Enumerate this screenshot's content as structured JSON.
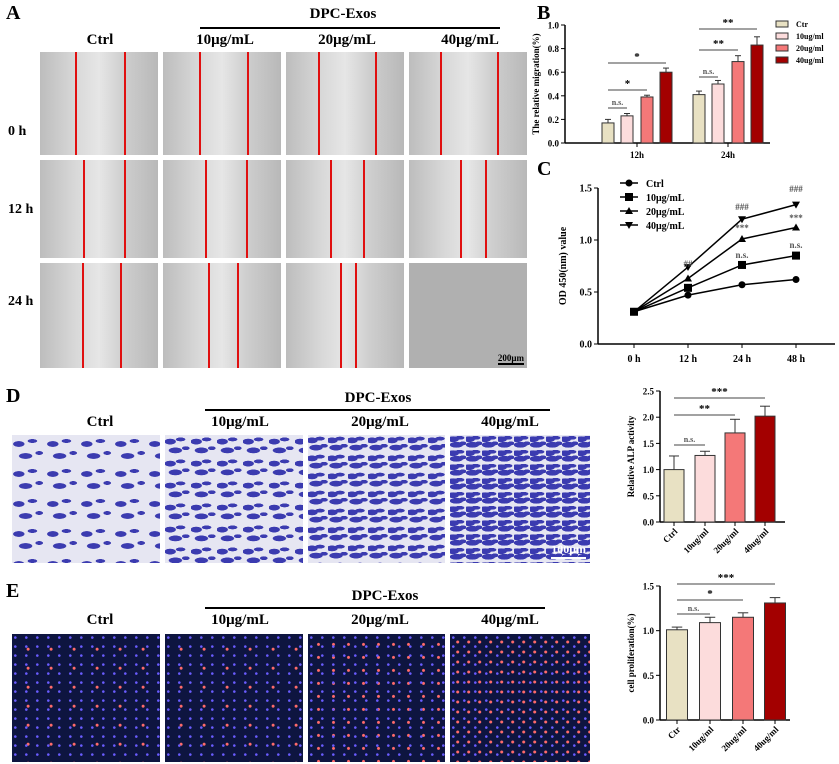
{
  "panels": {
    "A": {
      "label": "A",
      "group": "DPC-Exos",
      "columns": [
        "Ctrl",
        "10μg/mL",
        "20μg/mL",
        "40μg/mL"
      ],
      "rows": [
        "0 h",
        "12 h",
        "24 h"
      ],
      "scale": "200μm"
    },
    "B": {
      "label": "B"
    },
    "C": {
      "label": "C"
    },
    "D": {
      "label": "D",
      "group": "DPC-Exos",
      "columns": [
        "Ctrl",
        "10μg/mL",
        "20μg/mL",
        "40μg/mL"
      ],
      "scale": "100μm"
    },
    "E": {
      "label": "E",
      "group": "DPC-Exos",
      "columns": [
        "Ctrl",
        "10μg/mL",
        "20μg/mL",
        "40μg/mL"
      ]
    }
  },
  "colors": {
    "ctrl": "#e8e1c3",
    "c10": "#fcdcdc",
    "c20": "#f47878",
    "c40": "#a30000"
  },
  "chart_data": [
    {
      "id": "B",
      "type": "bar",
      "ylabel": "The relative migration(%)",
      "ylim": [
        0,
        1.0
      ],
      "yticks": [
        "0.0",
        "0.2",
        "0.4",
        "0.6",
        "0.8",
        "1.0"
      ],
      "categories": [
        "12h",
        "24h"
      ],
      "legend_position": "right",
      "series": [
        {
          "name": "Ctr",
          "values": [
            0.17,
            0.41
          ],
          "errors": [
            0.03,
            0.03
          ]
        },
        {
          "name": "10ug/ml",
          "values": [
            0.23,
            0.5
          ],
          "errors": [
            0.02,
            0.03
          ]
        },
        {
          "name": "20ug/ml",
          "values": [
            0.39,
            0.69
          ],
          "errors": [
            0.015,
            0.05
          ]
        },
        {
          "name": "40ug/ml",
          "values": [
            0.6,
            0.83
          ],
          "errors": [
            0.035,
            0.07
          ]
        }
      ],
      "annotations": [
        {
          "text": "n.s.",
          "group": "12h"
        },
        {
          "text": "*",
          "group": "12h"
        },
        {
          "text": "*",
          "group": "12h"
        },
        {
          "text": "n.s.",
          "group": "24h"
        },
        {
          "text": "**",
          "group": "24h"
        },
        {
          "text": "**",
          "group": "24h"
        }
      ]
    },
    {
      "id": "C",
      "type": "line",
      "ylabel": "OD 450(nm) value",
      "ylim": [
        0,
        1.5
      ],
      "yticks": [
        "0.0",
        "0.5",
        "1.0",
        "1.5"
      ],
      "x": [
        "0 h",
        "12 h",
        "24 h",
        "48 h"
      ],
      "legend_position": "top-left",
      "series": [
        {
          "name": "Ctrl",
          "marker": "circle",
          "values": [
            0.31,
            0.47,
            0.57,
            0.62
          ]
        },
        {
          "name": "10μg/mL",
          "marker": "square",
          "values": [
            0.31,
            0.54,
            0.76,
            0.85
          ]
        },
        {
          "name": "20μg/mL",
          "marker": "triangle",
          "values": [
            0.31,
            0.63,
            1.01,
            1.12
          ]
        },
        {
          "name": "40μg/mL",
          "marker": "triangle-down",
          "values": [
            0.31,
            0.74,
            1.2,
            1.34
          ]
        }
      ],
      "annotations": [
        {
          "x": "12 h",
          "text": "##"
        },
        {
          "x": "24 h",
          "text": "n.s."
        },
        {
          "x": "24 h",
          "text": "***"
        },
        {
          "x": "24 h",
          "text": "###"
        },
        {
          "x": "48 h",
          "text": "n.s."
        },
        {
          "x": "48 h",
          "text": "***"
        },
        {
          "x": "48 h",
          "text": "###"
        }
      ]
    },
    {
      "id": "D",
      "type": "bar",
      "ylabel": "Relative ALP activity",
      "ylim": [
        0,
        2.5
      ],
      "yticks": [
        "0.0",
        "0.5",
        "1.0",
        "1.5",
        "2.0",
        "2.5"
      ],
      "categories": [
        "Ctrl",
        "10ug/ml",
        "20ug/ml",
        "40ug/ml"
      ],
      "values": [
        1.0,
        1.27,
        1.7,
        2.02
      ],
      "errors": [
        0.26,
        0.08,
        0.26,
        0.19
      ],
      "annotations": [
        "n.s.",
        "**",
        "***"
      ]
    },
    {
      "id": "E",
      "type": "bar",
      "ylabel": "cell proliferation(%)",
      "ylim": [
        0,
        1.5
      ],
      "yticks": [
        "0.0",
        "0.5",
        "1.0",
        "1.5"
      ],
      "categories": [
        "Ctr",
        "10ug/ml",
        "20ug/ml",
        "40ug/ml"
      ],
      "values": [
        1.01,
        1.09,
        1.15,
        1.31
      ],
      "errors": [
        0.03,
        0.06,
        0.05,
        0.06
      ],
      "annotations": [
        "n.s.",
        "*",
        "***"
      ]
    }
  ]
}
